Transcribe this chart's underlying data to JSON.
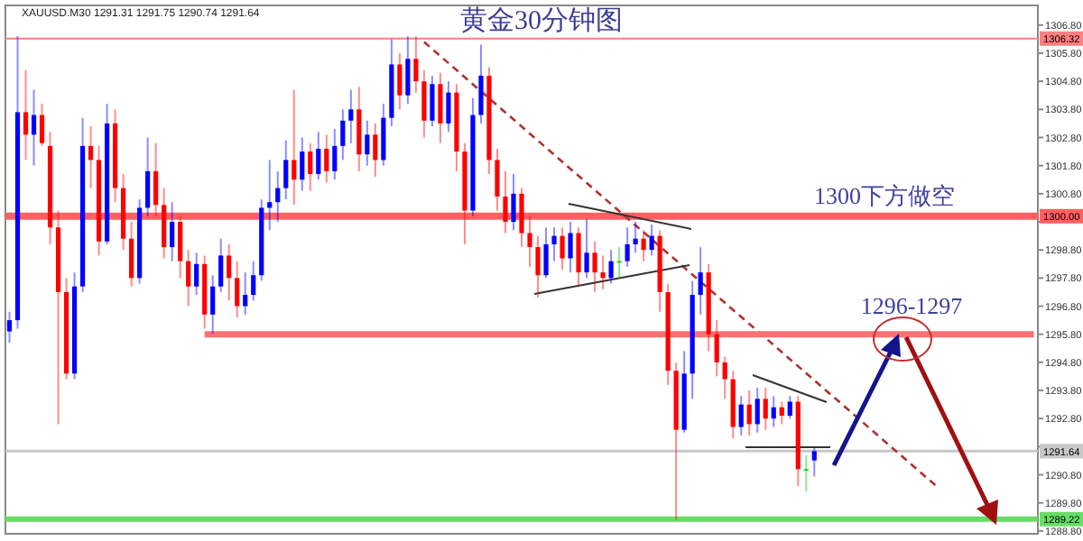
{
  "chart_data": {
    "type": "candlestick",
    "title": "黄金30分钟图",
    "subtitle": "XAUUSD.M30  1291.31 1291.75 1290.74 1291.64",
    "annotations": [
      "1300下方做空",
      "1296-1297"
    ],
    "tick_labels": "y",
    "categories": [
      null,
      null,
      null,
      null,
      null,
      null,
      null,
      null,
      null,
      null,
      null,
      null,
      null,
      null,
      null,
      null,
      null,
      null,
      null,
      null,
      null,
      null,
      null,
      null,
      null,
      null,
      null,
      null,
      null,
      null,
      null,
      null,
      null,
      null,
      null,
      null,
      null,
      null,
      null,
      null,
      null,
      null,
      null,
      null,
      null,
      null,
      null,
      null,
      null,
      null,
      null,
      null,
      null,
      null,
      null,
      null,
      null,
      null,
      null,
      null,
      null,
      null,
      null,
      null,
      null,
      null,
      null,
      null,
      null,
      null,
      null,
      null,
      null,
      null,
      null,
      null,
      null,
      null,
      null,
      null,
      null,
      null,
      null,
      null,
      null,
      null,
      null,
      null,
      null,
      null,
      null,
      null,
      null,
      null,
      null,
      null,
      null,
      null,
      null,
      null,
      null,
      null,
      null,
      null,
      null,
      null,
      null,
      null,
      null,
      null,
      null,
      null,
      null,
      null,
      null,
      null,
      null,
      null,
      null,
      null,
      null,
      null,
      null,
      null,
      null,
      null,
      null
    ],
    "ohlc": [
      [
        1295.9,
        1296.6,
        1295.5,
        1296.3
      ],
      [
        1296.3,
        1306.4,
        1296.0,
        1303.7
      ],
      [
        1303.7,
        1305.2,
        1302.0,
        1302.9
      ],
      [
        1302.9,
        1304.5,
        1301.8,
        1303.6
      ],
      [
        1303.6,
        1304.0,
        1302.5,
        1302.6
      ],
      [
        1302.5,
        1303.0,
        1299.0,
        1299.6
      ],
      [
        1299.6,
        1300.2,
        1292.6,
        1297.3
      ],
      [
        1297.3,
        1297.8,
        1294.2,
        1294.4
      ],
      [
        1294.4,
        1298.0,
        1294.2,
        1297.5
      ],
      [
        1297.5,
        1303.5,
        1297.3,
        1302.5
      ],
      [
        1302.5,
        1303.2,
        1301.0,
        1302.0
      ],
      [
        1302.0,
        1302.5,
        1298.6,
        1299.1
      ],
      [
        1299.1,
        1304.0,
        1299.0,
        1303.3
      ],
      [
        1303.3,
        1303.8,
        1300.5,
        1301.0
      ],
      [
        1301.0,
        1301.5,
        1298.8,
        1299.2
      ],
      [
        1299.2,
        1299.8,
        1297.5,
        1297.8
      ],
      [
        1297.8,
        1300.6,
        1297.6,
        1300.3
      ],
      [
        1300.3,
        1302.8,
        1300.0,
        1301.6
      ],
      [
        1301.6,
        1302.6,
        1300.0,
        1300.4
      ],
      [
        1300.4,
        1301.0,
        1298.5,
        1298.9
      ],
      [
        1298.9,
        1300.5,
        1298.4,
        1299.8
      ],
      [
        1299.8,
        1300.0,
        1297.8,
        1298.4
      ],
      [
        1298.4,
        1298.8,
        1296.8,
        1297.5
      ],
      [
        1297.5,
        1298.7,
        1297.2,
        1298.3
      ],
      [
        1298.3,
        1298.6,
        1296.0,
        1296.5
      ],
      [
        1296.5,
        1297.9,
        1295.8,
        1297.5
      ],
      [
        1297.5,
        1299.2,
        1297.3,
        1298.6
      ],
      [
        1298.6,
        1299.0,
        1297.0,
        1297.8
      ],
      [
        1297.8,
        1298.4,
        1296.4,
        1296.8
      ],
      [
        1296.8,
        1298.0,
        1296.5,
        1297.2
      ],
      [
        1297.2,
        1298.4,
        1297.0,
        1297.9
      ],
      [
        1297.9,
        1300.6,
        1297.7,
        1300.3
      ],
      [
        1300.3,
        1302.0,
        1299.5,
        1300.5
      ],
      [
        1300.5,
        1301.6,
        1299.8,
        1301.0
      ],
      [
        1301.0,
        1302.7,
        1300.6,
        1302.0
      ],
      [
        1302.0,
        1304.5,
        1300.4,
        1301.3
      ],
      [
        1301.3,
        1302.8,
        1300.9,
        1302.3
      ],
      [
        1302.3,
        1302.6,
        1300.9,
        1301.5
      ],
      [
        1301.5,
        1303.0,
        1301.3,
        1302.4
      ],
      [
        1302.4,
        1302.9,
        1301.2,
        1301.6
      ],
      [
        1301.6,
        1303.1,
        1301.3,
        1302.5
      ],
      [
        1302.5,
        1303.8,
        1302.0,
        1303.4
      ],
      [
        1303.4,
        1304.5,
        1302.6,
        1303.8
      ],
      [
        1303.8,
        1304.6,
        1301.6,
        1302.2
      ],
      [
        1302.2,
        1303.4,
        1301.8,
        1302.9
      ],
      [
        1302.9,
        1303.3,
        1301.4,
        1302.0
      ],
      [
        1302.0,
        1304.0,
        1301.8,
        1303.5
      ],
      [
        1303.5,
        1306.3,
        1303.2,
        1305.4
      ],
      [
        1305.4,
        1305.8,
        1303.8,
        1304.3
      ],
      [
        1304.3,
        1306.4,
        1304.0,
        1305.6
      ],
      [
        1305.6,
        1306.4,
        1304.4,
        1304.8
      ],
      [
        1304.8,
        1305.2,
        1302.8,
        1303.4
      ],
      [
        1303.4,
        1305.0,
        1303.2,
        1304.7
      ],
      [
        1304.7,
        1305.1,
        1302.6,
        1303.3
      ],
      [
        1303.3,
        1304.8,
        1303.0,
        1304.4
      ],
      [
        1304.4,
        1304.7,
        1301.6,
        1302.3
      ],
      [
        1302.3,
        1302.6,
        1299.0,
        1300.2
      ],
      [
        1300.2,
        1304.2,
        1300.0,
        1303.6
      ],
      [
        1303.6,
        1306.1,
        1303.3,
        1305.0
      ],
      [
        1305.0,
        1305.3,
        1301.5,
        1302.0
      ],
      [
        1302.0,
        1302.4,
        1300.2,
        1300.7
      ],
      [
        1300.7,
        1301.6,
        1299.4,
        1299.8
      ],
      [
        1299.8,
        1301.5,
        1299.5,
        1300.8
      ],
      [
        1300.8,
        1301.0,
        1298.9,
        1299.4
      ],
      [
        1299.4,
        1300.0,
        1298.2,
        1298.9
      ],
      [
        1298.9,
        1299.3,
        1297.1,
        1297.9
      ],
      [
        1297.9,
        1299.6,
        1297.8,
        1299.0
      ],
      [
        1299.0,
        1299.6,
        1298.4,
        1299.3
      ],
      [
        1299.3,
        1299.6,
        1298.1,
        1298.5
      ],
      [
        1298.5,
        1299.8,
        1298.0,
        1299.4
      ],
      [
        1299.4,
        1299.6,
        1297.5,
        1298.0
      ],
      [
        1298.0,
        1299.9,
        1297.8,
        1298.7
      ],
      [
        1298.7,
        1299.1,
        1297.3,
        1298.0
      ],
      [
        1298.0,
        1298.6,
        1297.4,
        1297.8
      ],
      [
        1297.8,
        1298.8,
        1297.6,
        1298.4
      ],
      [
        1298.4,
        1298.9,
        1297.8,
        1298.4
      ],
      [
        1298.4,
        1299.6,
        1298.2,
        1299.0
      ],
      [
        1299.0,
        1299.8,
        1298.7,
        1299.2
      ],
      [
        1299.2,
        1299.5,
        1298.4,
        1298.8
      ],
      [
        1298.8,
        1299.7,
        1298.6,
        1299.3
      ],
      [
        1299.3,
        1299.5,
        1296.6,
        1297.3
      ],
      [
        1297.3,
        1297.6,
        1294.0,
        1294.5
      ],
      [
        1294.5,
        1294.8,
        1289.2,
        1292.4
      ],
      [
        1292.4,
        1295.2,
        1292.3,
        1294.4
      ],
      [
        1294.4,
        1297.7,
        1293.5,
        1297.2
      ],
      [
        1297.2,
        1298.9,
        1296.5,
        1298.0
      ],
      [
        1298.0,
        1298.3,
        1295.2,
        1295.8
      ],
      [
        1295.8,
        1296.3,
        1294.3,
        1294.8
      ],
      [
        1294.8,
        1295.0,
        1293.5,
        1294.2
      ],
      [
        1294.2,
        1294.5,
        1292.1,
        1292.5
      ],
      [
        1292.5,
        1293.6,
        1292.2,
        1293.3
      ],
      [
        1293.3,
        1293.8,
        1292.2,
        1292.6
      ],
      [
        1292.6,
        1293.9,
        1292.3,
        1293.5
      ],
      [
        1293.5,
        1293.9,
        1292.4,
        1292.8
      ],
      [
        1292.8,
        1293.6,
        1292.5,
        1293.2
      ],
      [
        1293.2,
        1293.4,
        1292.6,
        1292.9
      ],
      [
        1292.9,
        1293.6,
        1292.8,
        1293.4
      ],
      [
        1293.4,
        1293.6,
        1290.4,
        1291.0
      ],
      [
        1291.0,
        1291.5,
        1290.2,
        1291.0
      ],
      [
        1291.31,
        1291.75,
        1290.74,
        1291.64
      ],
      null,
      null,
      null,
      null,
      null,
      null,
      null,
      null,
      null,
      null,
      null,
      null,
      null,
      null,
      null,
      null,
      null,
      null,
      null,
      null,
      null,
      null,
      null,
      null,
      null,
      null,
      null
    ],
    "colors": [
      "#0000ff",
      "#0000ff",
      "#ff0000",
      "#0000ff",
      "#ff0000",
      "#ff0000",
      "#ff0000",
      "#ff0000",
      "#0000ff",
      "#0000ff",
      "#ff0000",
      "#ff0000",
      "#0000ff",
      "#ff0000",
      "#ff0000",
      "#ff0000",
      "#0000ff",
      "#0000ff",
      "#ff0000",
      "#ff0000",
      "#0000ff",
      "#ff0000",
      "#ff0000",
      "#0000ff",
      "#ff0000",
      "#0000ff",
      "#0000ff",
      "#ff0000",
      "#ff0000",
      "#0000ff",
      "#0000ff",
      "#0000ff",
      "#0000ff",
      "#0000ff",
      "#0000ff",
      "#ff0000",
      "#0000ff",
      "#ff0000",
      "#0000ff",
      "#ff0000",
      "#0000ff",
      "#0000ff",
      "#0000ff",
      "#ff0000",
      "#0000ff",
      "#ff0000",
      "#0000ff",
      "#0000ff",
      "#ff0000",
      "#0000ff",
      "#ff0000",
      "#ff0000",
      "#0000ff",
      "#ff0000",
      "#0000ff",
      "#ff0000",
      "#ff0000",
      "#0000ff",
      "#0000ff",
      "#ff0000",
      "#ff0000",
      "#ff0000",
      "#0000ff",
      "#ff0000",
      "#ff0000",
      "#ff0000",
      "#0000ff",
      "#0000ff",
      "#ff0000",
      "#0000ff",
      "#ff0000",
      "#0000ff",
      "#ff0000",
      "#ff0000",
      "#0000ff",
      "#00cc00",
      "#0000ff",
      "#0000ff",
      "#ff0000",
      "#0000ff",
      "#ff0000",
      "#ff0000",
      "#ff0000",
      "#0000ff",
      "#0000ff",
      "#0000ff",
      "#ff0000",
      "#ff0000",
      "#ff0000",
      "#ff0000",
      "#0000ff",
      "#ff0000",
      "#0000ff",
      "#ff0000",
      "#0000ff",
      "#ff0000",
      "#0000ff",
      "#ff0000",
      "#00cc00",
      "#0000ff",
      null,
      null,
      null,
      null,
      null,
      null,
      null,
      null,
      null,
      null,
      null,
      null,
      null,
      null,
      null,
      null,
      null,
      null,
      null,
      null,
      null,
      null,
      null,
      null,
      null,
      null,
      null
    ],
    "series": [
      {
        "type": "line",
        "color": "#b03030",
        "line_style": "dashed",
        "values": [
          null,
          null,
          null,
          null,
          null,
          null,
          null,
          null,
          null,
          null,
          null,
          null,
          null,
          null,
          null,
          null,
          null,
          null,
          null,
          null,
          null,
          null,
          null,
          null,
          null,
          null,
          null,
          null,
          null,
          null,
          null,
          null,
          null,
          null,
          null,
          null,
          null,
          null,
          null,
          null,
          null,
          null,
          null,
          null,
          null,
          null,
          null,
          null,
          null,
          null,
          null,
          1306.2,
          null,
          null,
          null,
          null,
          null,
          null,
          null,
          null,
          null,
          null,
          null,
          null,
          null,
          null,
          null,
          null,
          null,
          null,
          null,
          null,
          null,
          null,
          null,
          null,
          null,
          null,
          null,
          null,
          null,
          null,
          null,
          null,
          null,
          null,
          null,
          null,
          null,
          null,
          null,
          null,
          null,
          null,
          null,
          null,
          null,
          null,
          null,
          null,
          null,
          null,
          null,
          null,
          null,
          null,
          null,
          null,
          null,
          null,
          null,
          null,
          null,
          null,
          1290.4,
          null,
          null,
          null,
          null,
          null,
          null,
          null,
          null,
          null,
          null,
          null,
          null
        ]
      },
      {
        "type": "line",
        "color": "#ff7070",
        "line_style": "solid",
        "values": [
          null,
          null,
          null,
          null,
          null,
          null,
          null,
          null,
          null,
          null,
          null,
          null,
          null,
          null,
          null,
          null,
          null,
          null,
          null,
          null,
          null,
          null,
          null,
          null,
          1295.8,
          null,
          null,
          null,
          null,
          null,
          null,
          null,
          null,
          null,
          null,
          null,
          null,
          null,
          null,
          null,
          null,
          null,
          null,
          null,
          null,
          null,
          null,
          null,
          null,
          null,
          null,
          null,
          null,
          null,
          null,
          null,
          null,
          null,
          null,
          null,
          null,
          null,
          null,
          null,
          null,
          null,
          null,
          null,
          null,
          null,
          null,
          null,
          null,
          null,
          null,
          null,
          null,
          null,
          null,
          null,
          null,
          null,
          null,
          null,
          null,
          null,
          null,
          null,
          null,
          null,
          null,
          null,
          null,
          null,
          null,
          null,
          null,
          null,
          null,
          null,
          null,
          null,
          null,
          null,
          null,
          null,
          null,
          null,
          null,
          null,
          null,
          null,
          null,
          null,
          null,
          null,
          null,
          null,
          null,
          null,
          null,
          null,
          null,
          null,
          null,
          null,
          1295.8
        ]
      }
    ],
    "ref_lines": [
      {
        "axis": "y",
        "value": 1306.32,
        "label": "1306.32",
        "color": "#ff8080"
      },
      {
        "axis": "y",
        "value": 1300.0,
        "label": "1300.00",
        "color": "#ff6060"
      },
      {
        "axis": "y",
        "value": 1291.64,
        "label": "1291.64",
        "color": "#c8c8c8"
      },
      {
        "axis": "y",
        "value": 1289.22,
        "label": "1289.22",
        "color": "#66dd66"
      }
    ],
    "ylim": [
      1288.7,
      1307.5
    ],
    "yticks": [
      {
        "value": 1288.8,
        "label": "1288.80"
      },
      {
        "value": 1289.8,
        "label": "1289.80"
      },
      {
        "value": 1290.8,
        "label": "1290.80"
      },
      {
        "value": 1291.8,
        "label": null
      },
      {
        "value": 1292.8,
        "label": "1292.80"
      },
      {
        "value": 1293.8,
        "label": "1293.80"
      },
      {
        "value": 1294.8,
        "label": "1294.80"
      },
      {
        "value": 1295.8,
        "label": "1295.80"
      },
      {
        "value": 1296.8,
        "label": "1296.80"
      },
      {
        "value": 1297.8,
        "label": "1297.80"
      },
      {
        "value": 1298.8,
        "label": "1298.80"
      },
      {
        "value": 1299.8,
        "label": null
      },
      {
        "value": 1300.8,
        "label": "1300.80"
      },
      {
        "value": 1301.8,
        "label": "1301.80"
      },
      {
        "value": 1302.8,
        "label": "1302.80"
      },
      {
        "value": 1303.8,
        "label": "1303.80"
      },
      {
        "value": 1304.8,
        "label": "1304.80"
      },
      {
        "value": 1305.8,
        "label": "1305.80"
      },
      {
        "value": 1306.8,
        "label": "1306.80"
      }
    ]
  }
}
